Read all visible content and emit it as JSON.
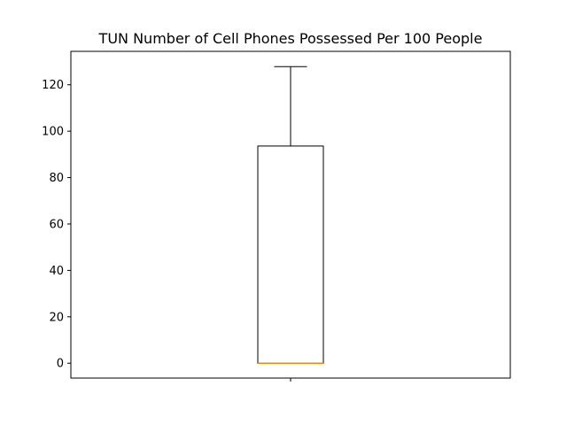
{
  "chart_data": {
    "type": "box",
    "title": "TUN Number of Cell Phones Possessed Per 100 People",
    "xlabel": "",
    "ylabel": "",
    "ylim": [
      -6.4,
      134.4
    ],
    "yticks": [
      0,
      20,
      40,
      60,
      80,
      100,
      120
    ],
    "boxes": [
      {
        "q1": 0,
        "median": 0,
        "q3": 93.6,
        "whisker_low": 0,
        "whisker_high": 127.8
      }
    ],
    "grid": false,
    "colors": {
      "box": "#000000",
      "median": "#ff7f0e"
    }
  }
}
